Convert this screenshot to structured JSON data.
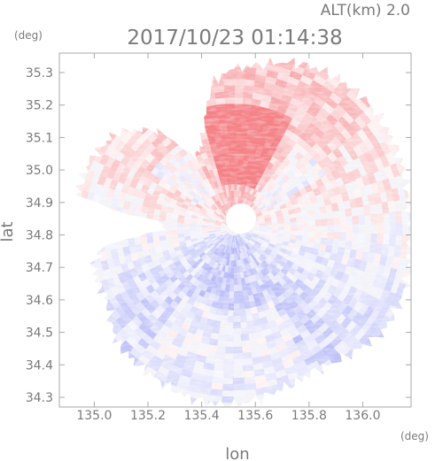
{
  "header": {
    "altitude_label": "ALT(km) 2.0",
    "timestamp": "2017/10/23 01:14:38"
  },
  "axes": {
    "x_label": "lon",
    "y_label": "lat",
    "x_unit": "(deg)",
    "y_unit": "(deg)",
    "x_ticks": [
      "135.0",
      "135.2",
      "135.4",
      "135.6",
      "135.8",
      "136.0"
    ],
    "y_ticks": [
      "34.3",
      "34.4",
      "34.5",
      "34.6",
      "34.7",
      "34.8",
      "34.9",
      "35.0",
      "35.1",
      "35.2",
      "35.3"
    ]
  },
  "map": {
    "type": "radar doppler velocity PPI",
    "center_lon": 135.52,
    "center_lat": 34.82,
    "lon_range": [
      134.87,
      136.18
    ],
    "lat_range": [
      34.27,
      35.36
    ],
    "colors": {
      "approaching": "#6f74f0",
      "receding": "#f0585f",
      "neutral": "#f4f4f8"
    }
  }
}
